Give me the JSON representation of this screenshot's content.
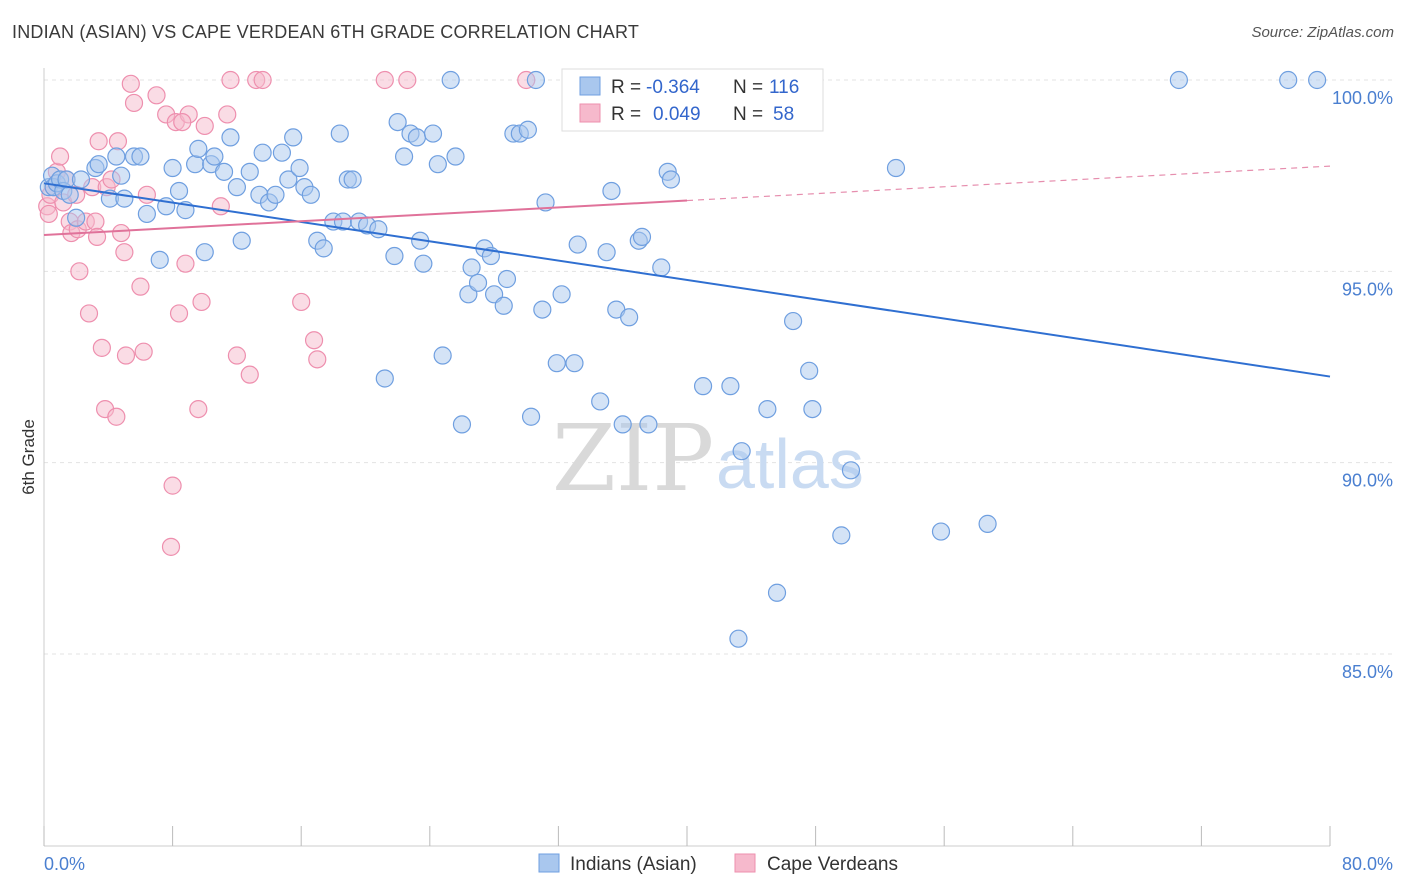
{
  "title": "INDIAN (ASIAN) VS CAPE VERDEAN 6TH GRADE CORRELATION CHART",
  "source": "Source: ZipAtlas.com",
  "watermark": {
    "zip": "ZIP",
    "atlas": "atlas"
  },
  "colors": {
    "blue_fill": "#a9c7ee",
    "blue_stroke": "#6f9fe0",
    "blue_line": "#2f6fd1",
    "pink_fill": "#f6b9cc",
    "pink_stroke": "#ee8fae",
    "pink_line": "#e0729a",
    "tick_text": "#4a7fd0",
    "grid": "#e3e3e3"
  },
  "legend": {
    "r_label": "R =",
    "n_label": "N =",
    "rows": [
      {
        "r": "-0.364",
        "n": "116",
        "color": "blue"
      },
      {
        "r": "0.049",
        "n": "58",
        "color": "pink"
      }
    ]
  },
  "chart_data": {
    "type": "scatter",
    "title": "INDIAN (ASIAN) VS CAPE VERDEAN 6TH GRADE CORRELATION CHART",
    "xlabel": "",
    "ylabel": "6th Grade",
    "xlim": [
      0,
      80
    ],
    "ylim": [
      80,
      100.8
    ],
    "x_tick_labels": [
      "0.0%",
      "80.0%"
    ],
    "y_ticks": [
      {
        "value": 85,
        "label": "85.0%"
      },
      {
        "value": 90,
        "label": "90.0%"
      },
      {
        "value": 95,
        "label": "95.0%"
      },
      {
        "value": 100,
        "label": "100.0%"
      }
    ],
    "grid": true,
    "legend_position": "bottom",
    "series": [
      {
        "name": "Indians (Asian)",
        "color": "blue",
        "trend": {
          "x": [
            0,
            80
          ],
          "y": [
            97.3,
            92.25
          ]
        },
        "points": [
          [
            0.3,
            97.2
          ],
          [
            0.5,
            97.5
          ],
          [
            0.6,
            97.2
          ],
          [
            0.8,
            97.3
          ],
          [
            1.0,
            97.4
          ],
          [
            1.2,
            97.1
          ],
          [
            1.4,
            97.4
          ],
          [
            1.6,
            97.0
          ],
          [
            2.0,
            96.4
          ],
          [
            2.3,
            97.4
          ],
          [
            3.2,
            97.7
          ],
          [
            3.4,
            97.8
          ],
          [
            4.1,
            96.9
          ],
          [
            4.5,
            98.0
          ],
          [
            4.8,
            97.5
          ],
          [
            5.0,
            96.9
          ],
          [
            5.6,
            98.0
          ],
          [
            6.0,
            98.0
          ],
          [
            6.4,
            96.5
          ],
          [
            7.2,
            95.3
          ],
          [
            7.6,
            96.7
          ],
          [
            8.0,
            97.7
          ],
          [
            8.4,
            97.1
          ],
          [
            8.8,
            96.6
          ],
          [
            9.4,
            97.8
          ],
          [
            9.6,
            98.2
          ],
          [
            10.0,
            95.5
          ],
          [
            10.4,
            97.8
          ],
          [
            10.6,
            98.0
          ],
          [
            11.2,
            97.6
          ],
          [
            11.6,
            98.5
          ],
          [
            12.0,
            97.2
          ],
          [
            12.3,
            95.8
          ],
          [
            12.8,
            97.6
          ],
          [
            13.4,
            97.0
          ],
          [
            13.6,
            98.1
          ],
          [
            14.0,
            96.8
          ],
          [
            14.4,
            97.0
          ],
          [
            14.8,
            98.1
          ],
          [
            15.2,
            97.4
          ],
          [
            15.5,
            98.5
          ],
          [
            15.9,
            97.7
          ],
          [
            16.2,
            97.2
          ],
          [
            16.6,
            97.0
          ],
          [
            17.0,
            95.8
          ],
          [
            17.4,
            95.6
          ],
          [
            18.0,
            96.3
          ],
          [
            18.4,
            98.6
          ],
          [
            18.6,
            96.3
          ],
          [
            18.9,
            97.4
          ],
          [
            19.2,
            97.4
          ],
          [
            19.6,
            96.3
          ],
          [
            20.1,
            96.2
          ],
          [
            20.8,
            96.1
          ],
          [
            21.2,
            92.2
          ],
          [
            21.8,
            95.4
          ],
          [
            22.0,
            98.9
          ],
          [
            22.4,
            98.0
          ],
          [
            22.8,
            98.6
          ],
          [
            23.2,
            98.5
          ],
          [
            23.4,
            95.8
          ],
          [
            23.6,
            95.2
          ],
          [
            24.2,
            98.6
          ],
          [
            24.5,
            97.8
          ],
          [
            24.8,
            92.8
          ],
          [
            25.3,
            100.0
          ],
          [
            25.6,
            98.0
          ],
          [
            26.0,
            91.0
          ],
          [
            26.4,
            94.4
          ],
          [
            26.6,
            95.1
          ],
          [
            27.0,
            94.7
          ],
          [
            27.4,
            95.6
          ],
          [
            27.8,
            95.4
          ],
          [
            28.0,
            94.4
          ],
          [
            28.6,
            94.1
          ],
          [
            28.8,
            94.8
          ],
          [
            29.2,
            98.6
          ],
          [
            29.6,
            98.6
          ],
          [
            30.1,
            98.7
          ],
          [
            30.3,
            91.2
          ],
          [
            30.6,
            100.0
          ],
          [
            31.0,
            94.0
          ],
          [
            31.2,
            96.8
          ],
          [
            31.9,
            92.6
          ],
          [
            32.2,
            94.4
          ],
          [
            33.0,
            92.6
          ],
          [
            33.2,
            95.7
          ],
          [
            34.6,
            91.6
          ],
          [
            35.0,
            95.5
          ],
          [
            35.3,
            97.1
          ],
          [
            35.6,
            94.0
          ],
          [
            36.0,
            91.0
          ],
          [
            36.4,
            93.8
          ],
          [
            37.0,
            95.8
          ],
          [
            37.2,
            95.9
          ],
          [
            37.6,
            91.0
          ],
          [
            38.4,
            95.1
          ],
          [
            38.8,
            97.6
          ],
          [
            39.0,
            97.4
          ],
          [
            41.0,
            92.0
          ],
          [
            42.7,
            92.0
          ],
          [
            43.2,
            85.4
          ],
          [
            43.4,
            90.3
          ],
          [
            45.0,
            91.4
          ],
          [
            45.6,
            86.6
          ],
          [
            46.6,
            93.7
          ],
          [
            47.6,
            92.4
          ],
          [
            47.8,
            91.4
          ],
          [
            49.6,
            88.1
          ],
          [
            50.2,
            89.8
          ],
          [
            53.0,
            97.7
          ],
          [
            55.8,
            88.2
          ],
          [
            58.7,
            88.4
          ],
          [
            70.6,
            100.0
          ],
          [
            77.4,
            100.0
          ],
          [
            79.2,
            100.0
          ]
        ]
      },
      {
        "name": "Cape Verdeans",
        "color": "pink",
        "trend": {
          "x": [
            0,
            40
          ],
          "y": [
            95.95,
            96.85
          ]
        },
        "trend_dashed": {
          "x": [
            40,
            80
          ],
          "y": [
            96.85,
            97.75
          ]
        },
        "points": [
          [
            0.2,
            96.7
          ],
          [
            0.3,
            96.5
          ],
          [
            0.4,
            97.0
          ],
          [
            0.6,
            97.2
          ],
          [
            0.8,
            97.6
          ],
          [
            1.0,
            98.0
          ],
          [
            1.2,
            96.8
          ],
          [
            1.4,
            97.4
          ],
          [
            1.6,
            96.3
          ],
          [
            1.7,
            96.0
          ],
          [
            2.0,
            97.0
          ],
          [
            2.1,
            96.1
          ],
          [
            2.2,
            95.0
          ],
          [
            2.6,
            96.3
          ],
          [
            2.8,
            93.9
          ],
          [
            3.0,
            97.2
          ],
          [
            3.2,
            96.3
          ],
          [
            3.3,
            95.9
          ],
          [
            3.4,
            98.4
          ],
          [
            3.6,
            93.0
          ],
          [
            3.8,
            91.4
          ],
          [
            3.9,
            97.2
          ],
          [
            4.2,
            97.4
          ],
          [
            4.5,
            91.2
          ],
          [
            4.6,
            98.4
          ],
          [
            4.8,
            96.0
          ],
          [
            5.0,
            95.5
          ],
          [
            5.1,
            92.8
          ],
          [
            5.4,
            99.9
          ],
          [
            5.6,
            99.4
          ],
          [
            6.0,
            94.6
          ],
          [
            6.2,
            92.9
          ],
          [
            6.4,
            97.0
          ],
          [
            7.0,
            99.6
          ],
          [
            7.6,
            99.1
          ],
          [
            8.0,
            89.4
          ],
          [
            8.2,
            98.9
          ],
          [
            8.4,
            93.9
          ],
          [
            8.8,
            95.2
          ],
          [
            9.0,
            99.1
          ],
          [
            9.6,
            91.4
          ],
          [
            9.8,
            94.2
          ],
          [
            10.0,
            98.8
          ],
          [
            11.0,
            96.7
          ],
          [
            11.4,
            99.1
          ],
          [
            11.6,
            100.0
          ],
          [
            12.0,
            92.8
          ],
          [
            12.8,
            92.3
          ],
          [
            13.2,
            100.0
          ],
          [
            13.6,
            100.0
          ],
          [
            16.0,
            94.2
          ],
          [
            16.8,
            93.2
          ],
          [
            17.0,
            92.7
          ],
          [
            21.2,
            100.0
          ],
          [
            22.6,
            100.0
          ],
          [
            30.0,
            100.0
          ],
          [
            7.9,
            87.8
          ],
          [
            8.6,
            98.9
          ]
        ]
      }
    ]
  },
  "bottom_legend": [
    {
      "label": "Indians (Asian)",
      "color": "blue"
    },
    {
      "label": "Cape Verdeans",
      "color": "pink"
    }
  ]
}
